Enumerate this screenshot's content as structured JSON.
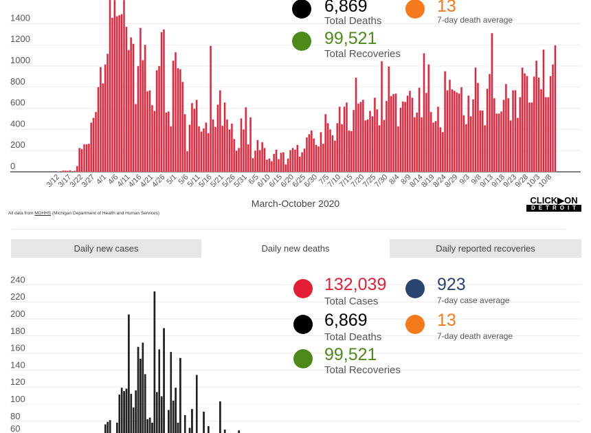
{
  "chart_data": [
    {
      "type": "bar",
      "title": "Daily new cases",
      "xlabel": "March-October 2020",
      "ylabel": "",
      "ylim": [
        0,
        1620
      ],
      "yticks": [
        0,
        200,
        400,
        600,
        800,
        1000,
        1200,
        1400
      ],
      "grid": true,
      "bar_color": "#e0243a",
      "start_date": "3/12",
      "x_tick_labels": [
        "3/12",
        "3/17",
        "3/22",
        "3/27",
        "4/1",
        "4/6",
        "4/11",
        "4/16",
        "4/21",
        "4/26",
        "5/1",
        "5/6",
        "5/11",
        "5/16",
        "5/21",
        "5/26",
        "5/31",
        "6/5",
        "6/10",
        "6/15",
        "6/20",
        "6/25",
        "6/30",
        "7/5",
        "7/10",
        "7/15",
        "7/20",
        "7/25",
        "7/30",
        "8/4",
        "8/9",
        "8/14",
        "8/19",
        "8/24",
        "8/29",
        "9/3",
        "9/8",
        "9/13",
        "9/18",
        "9/23",
        "9/28",
        "10/3",
        "10/8"
      ],
      "x_tick_every_days": 5,
      "values": [
        5,
        0,
        12,
        12,
        10,
        15,
        0,
        10,
        55,
        225,
        215,
        260,
        260,
        265,
        465,
        510,
        565,
        800,
        990,
        835,
        1015,
        1115,
        1650,
        1455,
        1650,
        1470,
        1480,
        1490,
        1650,
        1370,
        1150,
        1270,
        1210,
        640,
        1000,
        1360,
        1055,
        1200,
        760,
        770,
        630,
        575,
        960,
        1000,
        1320,
        1345,
        560,
        570,
        430,
        1050,
        1130,
        980,
        970,
        850,
        545,
        195,
        445,
        650,
        595,
        680,
        430,
        380,
        410,
        465,
        365,
        1190,
        495,
        425,
        635,
        770,
        435,
        655,
        495,
        400,
        455,
        310,
        200,
        225,
        505,
        400,
        610,
        260,
        515,
        130,
        200,
        300,
        205,
        280,
        225,
        115,
        125,
        100,
        170,
        210,
        120,
        180,
        185,
        70,
        125,
        205,
        225,
        210,
        255,
        145,
        185,
        220,
        325,
        355,
        390,
        315,
        255,
        240,
        375,
        265,
        545,
        460,
        400,
        345,
        295,
        460,
        615,
        450,
        615,
        655,
        390,
        385,
        585,
        890,
        645,
        660,
        680,
        485,
        495,
        575,
        525,
        700,
        590,
        440,
        1045,
        490,
        670,
        995,
        715,
        735,
        740,
        430,
        605,
        665,
        660,
        720,
        765,
        700,
        515,
        560,
        795,
        515,
        1120,
        745,
        1015,
        565,
        465,
        480,
        615,
        420,
        375,
        950,
        770,
        870,
        780,
        765,
        750,
        740,
        800,
        535,
        450,
        720,
        525,
        685,
        985,
        840,
        580,
        580,
        440,
        785,
        925,
        1310,
        695,
        550,
        550,
        570,
        680,
        830,
        695,
        485,
        770,
        770,
        510,
        705,
        985,
        930,
        905,
        655,
        655,
        900,
        1050,
        890,
        780,
        1155,
        705,
        705,
        905,
        1015,
        1195
      ]
    },
    {
      "type": "bar",
      "title": "Daily new deaths",
      "ylim": [
        0,
        240
      ],
      "yticks": [
        60,
        80,
        100,
        120,
        140,
        160,
        180,
        200,
        220,
        240
      ],
      "grid": true,
      "bar_color": "#111111",
      "visible_bars": [
        [
          20,
          76
        ],
        [
          21,
          79
        ],
        [
          22,
          81
        ],
        [
          25,
          78
        ],
        [
          26,
          111
        ],
        [
          27,
          119
        ],
        [
          28,
          115
        ],
        [
          29,
          118
        ],
        [
          30,
          205
        ],
        [
          31,
          112
        ],
        [
          32,
          96
        ],
        [
          33,
          116
        ],
        [
          34,
          167
        ],
        [
          35,
          153
        ],
        [
          36,
          172
        ],
        [
          37,
          135
        ],
        [
          38,
          82
        ],
        [
          39,
          84
        ],
        [
          40,
          78
        ],
        [
          41,
          232
        ],
        [
          42,
          114
        ],
        [
          43,
          164
        ],
        [
          44,
          109
        ],
        [
          45,
          189
        ],
        [
          47,
          93
        ],
        [
          48,
          161
        ],
        [
          49,
          104
        ],
        [
          50,
          119
        ],
        [
          51,
          78
        ],
        [
          52,
          154
        ],
        [
          54,
          87
        ],
        [
          56,
          72
        ],
        [
          57,
          94
        ],
        [
          59,
          134
        ],
        [
          62,
          91
        ],
        [
          64,
          74
        ],
        [
          69,
          103
        ],
        [
          71,
          70
        ],
        [
          77,
          69
        ]
      ]
    }
  ],
  "stats": {
    "total_cases": {
      "value": "132,039",
      "label": "Total Cases",
      "color": "#e31e36"
    },
    "case_avg": {
      "value": "923",
      "label": "7-day case average",
      "color": "#2a4470"
    },
    "total_deaths": {
      "value": "6,869",
      "label": "Total Deaths",
      "color": "#000000"
    },
    "death_avg": {
      "value": "13",
      "label": "7-day death average",
      "color": "#f47a1c"
    },
    "total_recoveries": {
      "value": "99,521",
      "label": "Total Recoveries",
      "color": "#4e8a1a"
    }
  },
  "footnote": {
    "prefix": "All data from ",
    "link": "MDHHS",
    "suffix": " (Michigan Department of Health and Human Services)"
  },
  "logo": {
    "line1": "CLICK▶ON",
    "line2": "DETROIT"
  },
  "tabs": [
    {
      "label": "Daily new cases",
      "active": false
    },
    {
      "label": "Daily new deaths",
      "active": true
    },
    {
      "label": "Daily reported recoveries",
      "active": false
    }
  ]
}
